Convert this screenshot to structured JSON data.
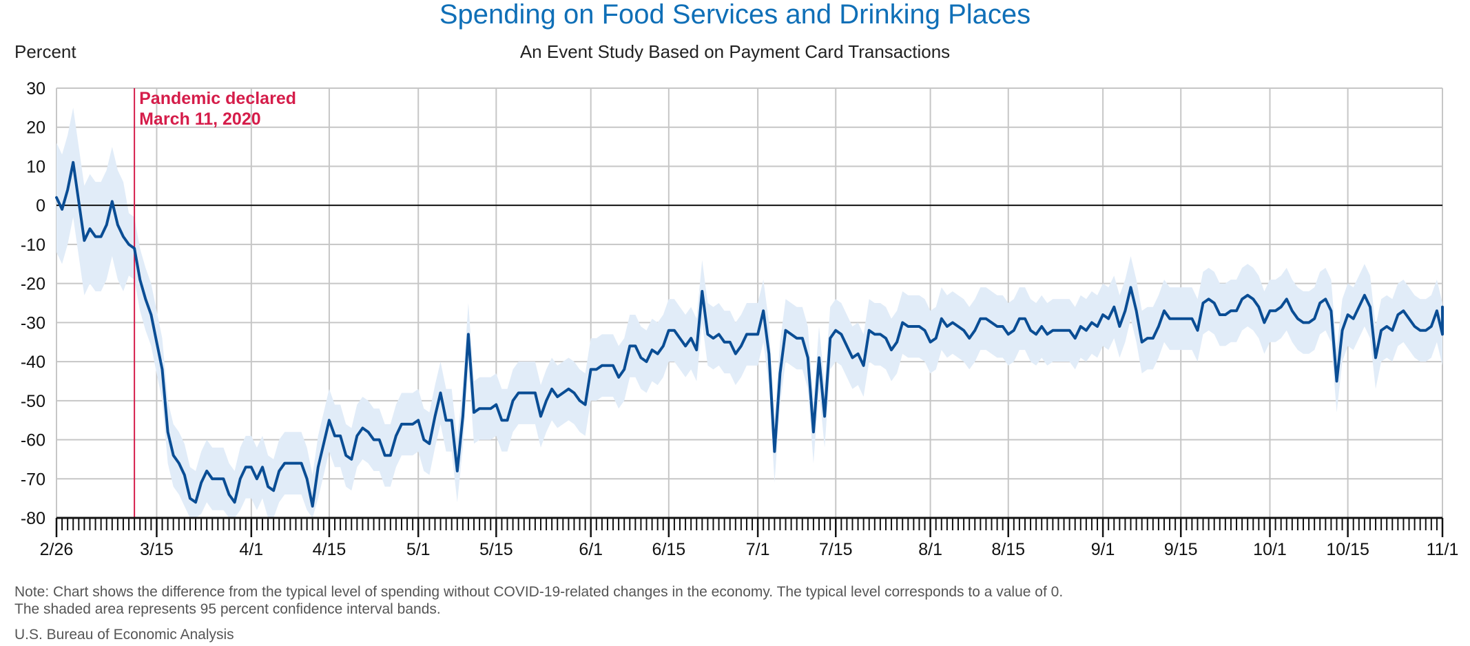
{
  "colors": {
    "title": "#0f6fb7",
    "line": "#0a4d94",
    "band": "#e1ecf8",
    "grid": "#c6c6c6",
    "zero": "#111111",
    "annotation": "#d51d4a"
  },
  "chart_data": {
    "type": "line",
    "title": "Spending on Food Services and Drinking Places",
    "subtitle": "An Event Study Based on Payment Card Transactions",
    "ylabel": "Percent",
    "xlabel": "",
    "ylim": [
      -80,
      30
    ],
    "yticks": [
      30,
      20,
      10,
      0,
      -10,
      -20,
      -30,
      -40,
      -50,
      -60,
      -70,
      -80
    ],
    "xlim": [
      "2020-02-26",
      "2020-11-01"
    ],
    "xtick_labels": [
      {
        "date": "2020-02-26",
        "label": "2/26"
      },
      {
        "date": "2020-03-15",
        "label": "3/15"
      },
      {
        "date": "2020-04-01",
        "label": "4/1"
      },
      {
        "date": "2020-04-15",
        "label": "4/15"
      },
      {
        "date": "2020-05-01",
        "label": "5/1"
      },
      {
        "date": "2020-05-15",
        "label": "5/15"
      },
      {
        "date": "2020-06-01",
        "label": "6/1"
      },
      {
        "date": "2020-06-15",
        "label": "6/15"
      },
      {
        "date": "2020-07-01",
        "label": "7/1"
      },
      {
        "date": "2020-07-15",
        "label": "7/15"
      },
      {
        "date": "2020-08-01",
        "label": "8/1"
      },
      {
        "date": "2020-08-15",
        "label": "8/15"
      },
      {
        "date": "2020-09-01",
        "label": "9/1"
      },
      {
        "date": "2020-09-15",
        "label": "9/15"
      },
      {
        "date": "2020-10-01",
        "label": "10/1"
      },
      {
        "date": "2020-10-15",
        "label": "10/15"
      },
      {
        "date": "2020-11-01",
        "label": "11/1"
      }
    ],
    "grid": true,
    "annotation": {
      "date": "2020-03-11",
      "lines": [
        "Pandemic declared",
        "March 11, 2020"
      ]
    },
    "series": [
      {
        "name": "",
        "band_width": 8,
        "points": [
          [
            "2020-02-26",
            2
          ],
          [
            "2020-02-27",
            -1
          ],
          [
            "2020-02-28",
            4
          ],
          [
            "2020-02-29",
            11
          ],
          [
            "2020-03-01",
            1
          ],
          [
            "2020-03-02",
            -9
          ],
          [
            "2020-03-03",
            -6
          ],
          [
            "2020-03-04",
            -8
          ],
          [
            "2020-03-05",
            -8
          ],
          [
            "2020-03-06",
            -5
          ],
          [
            "2020-03-07",
            1
          ],
          [
            "2020-03-08",
            -5
          ],
          [
            "2020-03-09",
            -8
          ],
          [
            "2020-03-10",
            -10
          ],
          [
            "2020-03-11",
            -11
          ],
          [
            "2020-03-12",
            -19
          ],
          [
            "2020-03-13",
            -24
          ],
          [
            "2020-03-14",
            -28
          ],
          [
            "2020-03-15",
            -35
          ],
          [
            "2020-03-16",
            -42
          ],
          [
            "2020-03-17",
            -58
          ],
          [
            "2020-03-18",
            -64
          ],
          [
            "2020-03-19",
            -66
          ],
          [
            "2020-03-20",
            -69
          ],
          [
            "2020-03-21",
            -75
          ],
          [
            "2020-03-22",
            -76
          ],
          [
            "2020-03-23",
            -71
          ],
          [
            "2020-03-24",
            -68
          ],
          [
            "2020-03-25",
            -70
          ],
          [
            "2020-03-26",
            -70
          ],
          [
            "2020-03-27",
            -70
          ],
          [
            "2020-03-28",
            -74
          ],
          [
            "2020-03-29",
            -76
          ],
          [
            "2020-03-30",
            -70
          ],
          [
            "2020-03-31",
            -67
          ],
          [
            "2020-04-01",
            -67
          ],
          [
            "2020-04-02",
            -70
          ],
          [
            "2020-04-03",
            -67
          ],
          [
            "2020-04-04",
            -72
          ],
          [
            "2020-04-05",
            -73
          ],
          [
            "2020-04-06",
            -68
          ],
          [
            "2020-04-07",
            -66
          ],
          [
            "2020-04-08",
            -66
          ],
          [
            "2020-04-09",
            -66
          ],
          [
            "2020-04-10",
            -66
          ],
          [
            "2020-04-11",
            -70
          ],
          [
            "2020-04-12",
            -77
          ],
          [
            "2020-04-13",
            -67
          ],
          [
            "2020-04-14",
            -61
          ],
          [
            "2020-04-15",
            -55
          ],
          [
            "2020-04-16",
            -59
          ],
          [
            "2020-04-17",
            -59
          ],
          [
            "2020-04-18",
            -64
          ],
          [
            "2020-04-19",
            -65
          ],
          [
            "2020-04-20",
            -59
          ],
          [
            "2020-04-21",
            -57
          ],
          [
            "2020-04-22",
            -58
          ],
          [
            "2020-04-23",
            -60
          ],
          [
            "2020-04-24",
            -60
          ],
          [
            "2020-04-25",
            -64
          ],
          [
            "2020-04-26",
            -64
          ],
          [
            "2020-04-27",
            -59
          ],
          [
            "2020-04-28",
            -56
          ],
          [
            "2020-04-29",
            -56
          ],
          [
            "2020-04-30",
            -56
          ],
          [
            "2020-05-01",
            -55
          ],
          [
            "2020-05-02",
            -60
          ],
          [
            "2020-05-03",
            -61
          ],
          [
            "2020-05-04",
            -54
          ],
          [
            "2020-05-05",
            -48
          ],
          [
            "2020-05-06",
            -55
          ],
          [
            "2020-05-07",
            -55
          ],
          [
            "2020-05-08",
            -68
          ],
          [
            "2020-05-09",
            -54
          ],
          [
            "2020-05-10",
            -33
          ],
          [
            "2020-05-11",
            -53
          ],
          [
            "2020-05-12",
            -52
          ],
          [
            "2020-05-13",
            -52
          ],
          [
            "2020-05-14",
            -52
          ],
          [
            "2020-05-15",
            -51
          ],
          [
            "2020-05-16",
            -55
          ],
          [
            "2020-05-17",
            -55
          ],
          [
            "2020-05-18",
            -50
          ],
          [
            "2020-05-19",
            -48
          ],
          [
            "2020-05-20",
            -48
          ],
          [
            "2020-05-21",
            -48
          ],
          [
            "2020-05-22",
            -48
          ],
          [
            "2020-05-23",
            -54
          ],
          [
            "2020-05-24",
            -50
          ],
          [
            "2020-05-25",
            -47
          ],
          [
            "2020-05-26",
            -49
          ],
          [
            "2020-05-27",
            -48
          ],
          [
            "2020-05-28",
            -47
          ],
          [
            "2020-05-29",
            -48
          ],
          [
            "2020-05-30",
            -50
          ],
          [
            "2020-05-31",
            -51
          ],
          [
            "2020-06-01",
            -42
          ],
          [
            "2020-06-02",
            -42
          ],
          [
            "2020-06-03",
            -41
          ],
          [
            "2020-06-04",
            -41
          ],
          [
            "2020-06-05",
            -41
          ],
          [
            "2020-06-06",
            -44
          ],
          [
            "2020-06-07",
            -42
          ],
          [
            "2020-06-08",
            -36
          ],
          [
            "2020-06-09",
            -36
          ],
          [
            "2020-06-10",
            -39
          ],
          [
            "2020-06-11",
            -40
          ],
          [
            "2020-06-12",
            -37
          ],
          [
            "2020-06-13",
            -38
          ],
          [
            "2020-06-14",
            -36
          ],
          [
            "2020-06-15",
            -32
          ],
          [
            "2020-06-16",
            -32
          ],
          [
            "2020-06-17",
            -34
          ],
          [
            "2020-06-18",
            -36
          ],
          [
            "2020-06-19",
            -34
          ],
          [
            "2020-06-20",
            -37
          ],
          [
            "2020-06-21",
            -22
          ],
          [
            "2020-06-22",
            -33
          ],
          [
            "2020-06-23",
            -34
          ],
          [
            "2020-06-24",
            -33
          ],
          [
            "2020-06-25",
            -35
          ],
          [
            "2020-06-26",
            -35
          ],
          [
            "2020-06-27",
            -38
          ],
          [
            "2020-06-28",
            -36
          ],
          [
            "2020-06-29",
            -33
          ],
          [
            "2020-06-30",
            -33
          ],
          [
            "2020-07-01",
            -33
          ],
          [
            "2020-07-02",
            -27
          ],
          [
            "2020-07-03",
            -38
          ],
          [
            "2020-07-04",
            -63
          ],
          [
            "2020-07-05",
            -43
          ],
          [
            "2020-07-06",
            -32
          ],
          [
            "2020-07-07",
            -33
          ],
          [
            "2020-07-08",
            -34
          ],
          [
            "2020-07-09",
            -34
          ],
          [
            "2020-07-10",
            -39
          ],
          [
            "2020-07-11",
            -58
          ],
          [
            "2020-07-12",
            -39
          ],
          [
            "2020-07-13",
            -54
          ],
          [
            "2020-07-14",
            -34
          ],
          [
            "2020-07-15",
            -32
          ],
          [
            "2020-07-16",
            -33
          ],
          [
            "2020-07-17",
            -36
          ],
          [
            "2020-07-18",
            -39
          ],
          [
            "2020-07-19",
            -38
          ],
          [
            "2020-07-20",
            -41
          ],
          [
            "2020-07-21",
            -32
          ],
          [
            "2020-07-22",
            -33
          ],
          [
            "2020-07-23",
            -33
          ],
          [
            "2020-07-24",
            -34
          ],
          [
            "2020-07-25",
            -37
          ],
          [
            "2020-07-26",
            -35
          ],
          [
            "2020-07-27",
            -30
          ],
          [
            "2020-07-28",
            -31
          ],
          [
            "2020-07-29",
            -31
          ],
          [
            "2020-07-30",
            -31
          ],
          [
            "2020-07-31",
            -32
          ],
          [
            "2020-08-01",
            -35
          ],
          [
            "2020-08-02",
            -34
          ],
          [
            "2020-08-03",
            -29
          ],
          [
            "2020-08-04",
            -31
          ],
          [
            "2020-08-05",
            -30
          ],
          [
            "2020-08-06",
            -31
          ],
          [
            "2020-08-07",
            -32
          ],
          [
            "2020-08-08",
            -34
          ],
          [
            "2020-08-09",
            -32
          ],
          [
            "2020-08-10",
            -29
          ],
          [
            "2020-08-11",
            -29
          ],
          [
            "2020-08-12",
            -30
          ],
          [
            "2020-08-13",
            -31
          ],
          [
            "2020-08-14",
            -31
          ],
          [
            "2020-08-15",
            -33
          ],
          [
            "2020-08-16",
            -32
          ],
          [
            "2020-08-17",
            -29
          ],
          [
            "2020-08-18",
            -29
          ],
          [
            "2020-08-19",
            -32
          ],
          [
            "2020-08-20",
            -33
          ],
          [
            "2020-08-21",
            -31
          ],
          [
            "2020-08-22",
            -33
          ],
          [
            "2020-08-23",
            -32
          ],
          [
            "2020-08-24",
            -32
          ],
          [
            "2020-08-25",
            -32
          ],
          [
            "2020-08-26",
            -32
          ],
          [
            "2020-08-27",
            -34
          ],
          [
            "2020-08-28",
            -31
          ],
          [
            "2020-08-29",
            -32
          ],
          [
            "2020-08-30",
            -30
          ],
          [
            "2020-08-31",
            -31
          ],
          [
            "2020-09-01",
            -28
          ],
          [
            "2020-09-02",
            -29
          ],
          [
            "2020-09-03",
            -26
          ],
          [
            "2020-09-04",
            -31
          ],
          [
            "2020-09-05",
            -27
          ],
          [
            "2020-09-06",
            -21
          ],
          [
            "2020-09-07",
            -27
          ],
          [
            "2020-09-08",
            -35
          ],
          [
            "2020-09-09",
            -34
          ],
          [
            "2020-09-10",
            -34
          ],
          [
            "2020-09-11",
            -31
          ],
          [
            "2020-09-12",
            -27
          ],
          [
            "2020-09-13",
            -29
          ],
          [
            "2020-09-14",
            -29
          ],
          [
            "2020-09-15",
            -29
          ],
          [
            "2020-09-16",
            -29
          ],
          [
            "2020-09-17",
            -29
          ],
          [
            "2020-09-18",
            -32
          ],
          [
            "2020-09-19",
            -25
          ],
          [
            "2020-09-20",
            -24
          ],
          [
            "2020-09-21",
            -25
          ],
          [
            "2020-09-22",
            -28
          ],
          [
            "2020-09-23",
            -28
          ],
          [
            "2020-09-24",
            -27
          ],
          [
            "2020-09-25",
            -27
          ],
          [
            "2020-09-26",
            -24
          ],
          [
            "2020-09-27",
            -23
          ],
          [
            "2020-09-28",
            -24
          ],
          [
            "2020-09-29",
            -26
          ],
          [
            "2020-09-30",
            -30
          ],
          [
            "2020-10-01",
            -27
          ],
          [
            "2020-10-02",
            -27
          ],
          [
            "2020-10-03",
            -26
          ],
          [
            "2020-10-04",
            -24
          ],
          [
            "2020-10-05",
            -27
          ],
          [
            "2020-10-06",
            -29
          ],
          [
            "2020-10-07",
            -30
          ],
          [
            "2020-10-08",
            -30
          ],
          [
            "2020-10-09",
            -29
          ],
          [
            "2020-10-10",
            -25
          ],
          [
            "2020-10-11",
            -24
          ],
          [
            "2020-10-12",
            -27
          ],
          [
            "2020-10-13",
            -45
          ],
          [
            "2020-10-14",
            -32
          ],
          [
            "2020-10-15",
            -28
          ],
          [
            "2020-10-16",
            -29
          ],
          [
            "2020-10-17",
            -26
          ],
          [
            "2020-10-18",
            -23
          ],
          [
            "2020-10-19",
            -26
          ],
          [
            "2020-10-20",
            -39
          ],
          [
            "2020-10-21",
            -32
          ],
          [
            "2020-10-22",
            -31
          ],
          [
            "2020-10-23",
            -32
          ],
          [
            "2020-10-24",
            -28
          ],
          [
            "2020-10-25",
            -27
          ],
          [
            "2020-10-26",
            -29
          ],
          [
            "2020-10-27",
            -31
          ],
          [
            "2020-10-28",
            -32
          ],
          [
            "2020-10-29",
            -32
          ],
          [
            "2020-10-30",
            -31
          ],
          [
            "2020-10-31",
            -27
          ],
          [
            "2020-11-01",
            -33
          ],
          [
            "2020-11-02",
            -26
          ]
        ]
      }
    ]
  },
  "footer": {
    "note_line1": "Note: Chart shows the difference from the typical level of spending without COVID-19-related changes in the economy. The typical level corresponds to a value of 0.",
    "note_line2": "The shaded area represents 95 percent confidence interval bands.",
    "source": "U.S. Bureau of Economic Analysis"
  }
}
